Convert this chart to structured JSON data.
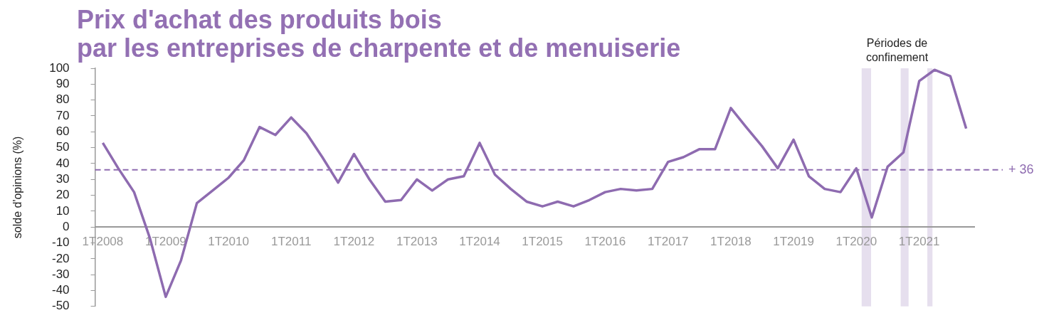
{
  "chart_data": {
    "type": "line",
    "title": "Prix d'achat des produits bois\npar les entreprises de charpente et de menuiserie",
    "ylabel": "solde d'opinions (%)",
    "x": [
      "2008-02-15",
      "2008-05-15",
      "2008-08-15",
      "2008-11-15",
      "2009-02-15",
      "2009-05-15",
      "2009-08-15",
      "2009-11-15",
      "2010-02-15",
      "2010-05-15",
      "2010-08-15",
      "2010-11-15",
      "2011-02-15",
      "2011-05-15",
      "2011-08-15",
      "2011-11-15",
      "2012-02-15",
      "2012-05-15",
      "2012-08-15",
      "2012-11-15",
      "2013-02-15",
      "2013-05-15",
      "2013-08-15",
      "2013-11-15",
      "2014-02-15",
      "2014-05-15",
      "2014-08-15",
      "2014-11-15",
      "2015-02-15",
      "2015-05-15",
      "2015-08-15",
      "2015-11-15",
      "2016-02-15",
      "2016-05-15",
      "2016-08-15",
      "2016-11-15",
      "2017-02-15",
      "2017-05-15",
      "2017-08-15",
      "2017-11-15",
      "2018-02-15",
      "2018-05-15",
      "2018-08-15",
      "2018-11-15",
      "2019-02-15",
      "2019-05-15",
      "2019-08-15",
      "2019-11-15",
      "2020-02-15",
      "2020-05-15",
      "2020-08-15",
      "2020-11-15",
      "2021-02-15",
      "2021-05-15",
      "2021-08-15",
      "2021-11-15"
    ],
    "series": [
      {
        "color": "#8e6bb0",
        "values": [
          53,
          37,
          22,
          -7,
          -44,
          -21,
          15,
          23,
          31,
          42,
          63,
          58,
          69,
          59,
          44,
          28,
          46,
          30,
          16,
          17,
          30,
          23,
          30,
          32,
          53,
          33,
          24,
          16,
          13,
          16,
          13,
          17,
          22,
          24,
          23,
          24,
          41,
          44,
          49,
          49,
          75,
          63,
          51,
          37,
          55,
          32,
          24,
          22,
          37,
          6,
          38,
          47,
          92,
          99,
          95,
          62
        ]
      }
    ],
    "xlim": [
      "2008-01-01",
      "2022-01-01"
    ],
    "xticks": [
      {
        "value": "2008-02-15",
        "label": "1T2008"
      },
      {
        "value": "2009-02-15",
        "label": "1T2009"
      },
      {
        "value": "2010-02-15",
        "label": "1T2010"
      },
      {
        "value": "2011-02-15",
        "label": "1T2011"
      },
      {
        "value": "2012-02-15",
        "label": "1T2012"
      },
      {
        "value": "2013-02-15",
        "label": "1T2013"
      },
      {
        "value": "2014-02-15",
        "label": "1T2014"
      },
      {
        "value": "2015-02-15",
        "label": "1T2015"
      },
      {
        "value": "2016-02-15",
        "label": "1T2016"
      },
      {
        "value": "2017-02-15",
        "label": "1T2017"
      },
      {
        "value": "2018-02-15",
        "label": "1T2018"
      },
      {
        "value": "2019-02-15",
        "label": "1T2019"
      },
      {
        "value": "2020-02-15",
        "label": "1T2020"
      },
      {
        "value": "2021-02-15",
        "label": "1T2021"
      }
    ],
    "ylim": [
      -50,
      100
    ],
    "yticks": [
      -50,
      -40,
      -30,
      -20,
      -10,
      0,
      10,
      20,
      30,
      40,
      50,
      60,
      70,
      80,
      90,
      100
    ],
    "ref_lines": [
      {
        "axis": "y",
        "value": 36,
        "label": "+ 36",
        "color": "#8e6bb0",
        "line_style": "dashed"
      }
    ],
    "bands": [
      {
        "axis": "x",
        "from": "2020-03-17",
        "to": "2020-05-11",
        "color": "#e6dfee"
      },
      {
        "axis": "x",
        "from": "2020-10-30",
        "to": "2020-12-15",
        "color": "#e6dfee"
      },
      {
        "axis": "x",
        "from": "2021-04-03",
        "to": "2021-05-03",
        "color": "#e6dfee"
      }
    ],
    "annotations": [
      "Périodes de\nconfinement"
    ],
    "grid": false,
    "legend": false,
    "marker": "none",
    "line_style": "solid"
  }
}
